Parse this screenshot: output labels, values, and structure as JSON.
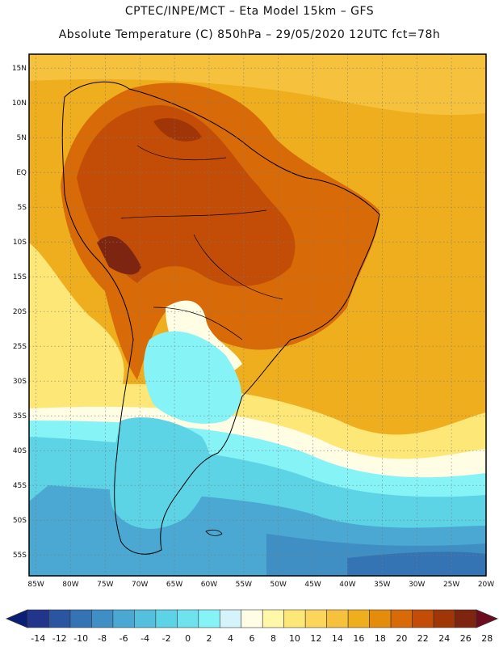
{
  "header": {
    "title_line1": "CPTEC/INPE/MCT –  Eta Model 15km – GFS",
    "title_line2": "Absolute Temperature (C) 850hPa – 29/05/2020 12UTC fct=78h"
  },
  "map": {
    "lon_range": [
      -86,
      -20
    ],
    "lat_range": [
      -58,
      17
    ],
    "lat_labels": [
      {
        "lat": 15,
        "text": "15N"
      },
      {
        "lat": 10,
        "text": "10N"
      },
      {
        "lat": 5,
        "text": "5N"
      },
      {
        "lat": 0,
        "text": "EQ"
      },
      {
        "lat": -5,
        "text": "5S"
      },
      {
        "lat": -10,
        "text": "10S"
      },
      {
        "lat": -15,
        "text": "15S"
      },
      {
        "lat": -20,
        "text": "20S"
      },
      {
        "lat": -25,
        "text": "25S"
      },
      {
        "lat": -30,
        "text": "30S"
      },
      {
        "lat": -35,
        "text": "35S"
      },
      {
        "lat": -40,
        "text": "40S"
      },
      {
        "lat": -45,
        "text": "45S"
      },
      {
        "lat": -50,
        "text": "50S"
      },
      {
        "lat": -55,
        "text": "55S"
      }
    ],
    "lon_labels": [
      {
        "lon": -85,
        "text": "85W"
      },
      {
        "lon": -80,
        "text": "80W"
      },
      {
        "lon": -75,
        "text": "75W"
      },
      {
        "lon": -70,
        "text": "70W"
      },
      {
        "lon": -65,
        "text": "65W"
      },
      {
        "lon": -60,
        "text": "60W"
      },
      {
        "lon": -55,
        "text": "55W"
      },
      {
        "lon": -50,
        "text": "50W"
      },
      {
        "lon": -45,
        "text": "45W"
      },
      {
        "lon": -40,
        "text": "40W"
      },
      {
        "lon": -35,
        "text": "35W"
      },
      {
        "lon": -30,
        "text": "30W"
      },
      {
        "lon": -25,
        "text": "25W"
      },
      {
        "lon": -20,
        "text": "20W"
      }
    ]
  },
  "colorbar": {
    "labels": [
      "-14",
      "-12",
      "-10",
      "-8",
      "-6",
      "-4",
      "-2",
      "0",
      "2",
      "4",
      "6",
      "8",
      "10",
      "12",
      "14",
      "16",
      "18",
      "20",
      "22",
      "24",
      "26",
      "28"
    ],
    "colors": [
      "#21358a",
      "#2b55a0",
      "#3574b4",
      "#3f8fc4",
      "#4aa8d3",
      "#54c0dd",
      "#5dd3e6",
      "#6ee3ee",
      "#86f3f6",
      "#d4f3fb",
      "#fffde4",
      "#fff8a8",
      "#fde877",
      "#fbd55c",
      "#f6c23d",
      "#eeae1e",
      "#e58c0c",
      "#d86a07",
      "#c34d06",
      "#a03507",
      "#7e2512"
    ],
    "under_color": "#0a1f75",
    "over_color": "#6c0c1e"
  }
}
